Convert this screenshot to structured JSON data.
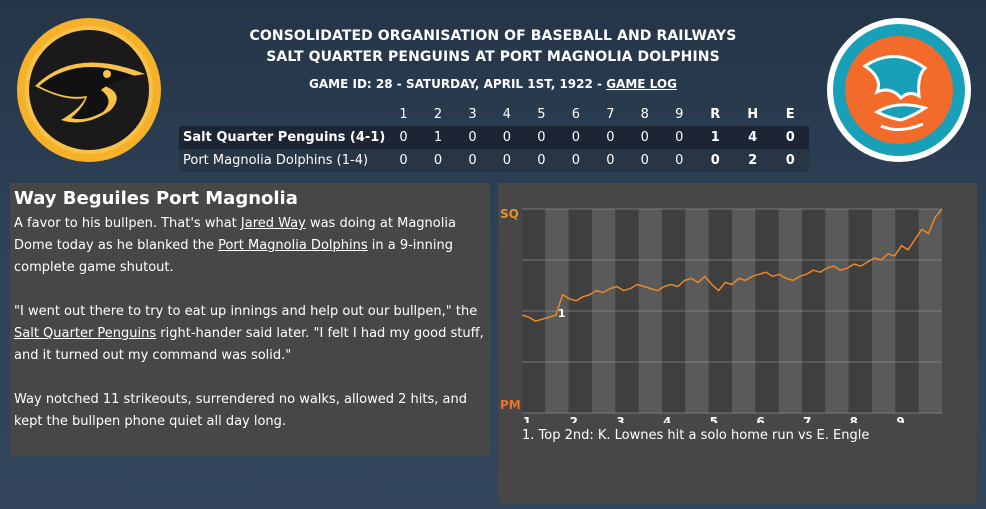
{
  "header": {
    "league": "CONSOLIDATED ORGANISATION OF BASEBALL AND RAILWAYS",
    "matchup": "SALT QUARTER PENGUINS AT PORT MAGNOLIA DOLPHINS",
    "game_info": "GAME ID: 28 - SATURDAY, APRIL 1ST, 1922 - ",
    "game_log_link": "GAME LOG"
  },
  "logos": {
    "away": "penguin-logo",
    "home": "dolphin-logo"
  },
  "scoreboard": {
    "columns": [
      "1",
      "2",
      "3",
      "4",
      "5",
      "6",
      "7",
      "8",
      "9",
      "R",
      "H",
      "E"
    ],
    "rows": [
      {
        "team": "Salt Quarter Penguins (4-1)",
        "innings": [
          "0",
          "1",
          "0",
          "0",
          "0",
          "0",
          "0",
          "0",
          "0"
        ],
        "r": "1",
        "h": "4",
        "e": "0"
      },
      {
        "team": "Port Magnolia Dolphins (1-4)",
        "innings": [
          "0",
          "0",
          "0",
          "0",
          "0",
          "0",
          "0",
          "0",
          "0"
        ],
        "r": "0",
        "h": "2",
        "e": "0"
      }
    ]
  },
  "article": {
    "headline": "Way Beguiles Port Magnolia",
    "p1_a": "A favor to his bullpen. That's what ",
    "p1_link1": "Jared Way",
    "p1_b": " was doing at Magnolia Dome today as he blanked the ",
    "p1_link2": "Port Magnolia Dolphins",
    "p1_c": " in a 9-inning complete game shutout.",
    "p2_a": "\"I went out there to try to eat up innings and help out our bullpen,\" the ",
    "p2_link": "Salt Quarter Penguins",
    "p2_b": " right-hander said later. \"I felt I had my good stuff, and it turned out my command was solid.\"",
    "p3": "Way notched 11 strikeouts, surrendered no walks, allowed 2 hits, and kept the bullpen phone quiet all day long."
  },
  "chart_data": {
    "type": "line",
    "y_top_label": "SQ",
    "y_bottom_label": "PM",
    "x_labels": [
      "1",
      "2",
      "3",
      "4",
      "5",
      "6",
      "7",
      "8",
      "9"
    ],
    "ylim": [
      0,
      100
    ],
    "series_color": "#e8872a",
    "top_label_color": "#e8902a",
    "bottom_label_color": "#e8702a",
    "values": [
      48,
      47,
      45,
      46,
      47,
      48,
      58,
      56,
      55,
      57,
      58,
      60,
      59,
      61,
      62,
      60,
      61,
      63,
      62,
      61,
      60,
      62,
      63,
      62,
      65,
      66,
      64,
      67,
      63,
      60,
      64,
      63,
      66,
      65,
      67,
      68,
      69,
      67,
      68,
      66,
      65,
      67,
      68,
      70,
      69,
      71,
      72,
      70,
      71,
      73,
      72,
      74,
      76,
      75,
      78,
      77,
      82,
      80,
      85,
      90,
      88,
      96,
      100
    ],
    "annotations": [
      {
        "marker": "1",
        "text": "1. Top 2nd: K. Lownes hit a solo home run vs E. Engle"
      }
    ]
  }
}
